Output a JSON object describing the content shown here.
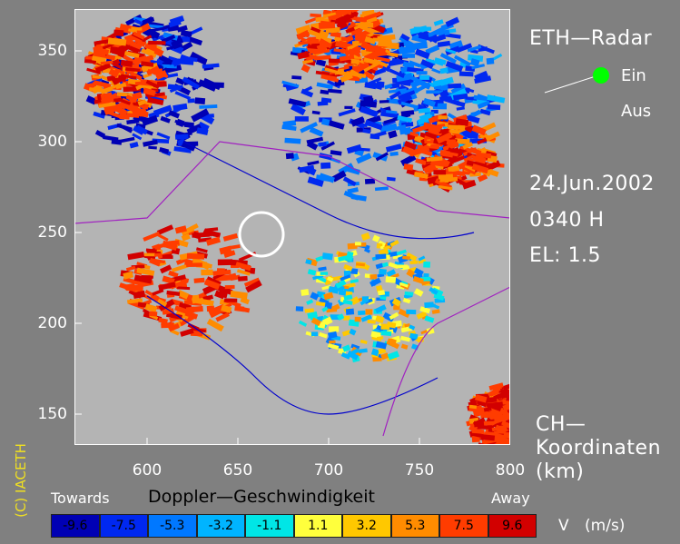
{
  "header": {
    "title": "ETH—Radar",
    "status_on": "Ein",
    "status_off": "Aus",
    "date": "24.Jun.2002",
    "time": "0340 H",
    "elevation": "EL: 1.5",
    "coords_line1": "CH—",
    "coords_line2": "Koordinaten",
    "coords_line3": "(km)"
  },
  "colors": {
    "background": "#808080",
    "plot_background": "#b4b4b4",
    "status_dot": "#00ff00",
    "copyright": "#f0e020",
    "river": "#0000cc",
    "border": "#a020c0",
    "marker_circle": "#ffffff"
  },
  "copyright": "(C) IACETH",
  "legend": {
    "towards": "Towards",
    "away": "Away",
    "title": "Doppler—Geschwindigkeit",
    "unit_label": "V (m/s)",
    "bins": [
      {
        "label": "-9.6",
        "color": "#0000b4"
      },
      {
        "label": "-7.5",
        "color": "#0028f0"
      },
      {
        "label": "-5.3",
        "color": "#0078ff"
      },
      {
        "label": "-3.2",
        "color": "#00b4ff"
      },
      {
        "label": "-1.1",
        "color": "#00e6e6"
      },
      {
        "label": "1.1",
        "color": "#ffff3c"
      },
      {
        "label": "3.2",
        "color": "#ffc800"
      },
      {
        "label": "5.3",
        "color": "#ff8c00"
      },
      {
        "label": "7.5",
        "color": "#ff3c00"
      },
      {
        "label": "9.6",
        "color": "#d20000"
      }
    ]
  },
  "chart_data": {
    "type": "heatmap",
    "title": "Doppler—Geschwindigkeit",
    "xlabel": "CH—Koordinaten (km)",
    "ylabel": "",
    "xlim": [
      560,
      800
    ],
    "ylim": [
      133,
      373
    ],
    "x_ticks": [
      600,
      650,
      700,
      750,
      800
    ],
    "y_ticks": [
      150,
      200,
      250,
      300,
      350
    ],
    "color_scale": "Doppler velocity V (m/s)",
    "marker": {
      "shape": "circle",
      "x": 663,
      "y": 249,
      "radius_km": 12
    },
    "echo_regions": [
      {
        "desc": "towards",
        "x": 710,
        "y": 320,
        "rx": 40,
        "ry": 50,
        "value": -7.5
      },
      {
        "desc": "towards",
        "x": 600,
        "y": 330,
        "rx": 35,
        "ry": 40,
        "value": -8.8
      },
      {
        "desc": "towards",
        "x": 760,
        "y": 330,
        "rx": 30,
        "ry": 40,
        "value": -6.0
      },
      {
        "desc": "away",
        "x": 585,
        "y": 340,
        "rx": 20,
        "ry": 25,
        "value": 7.5
      },
      {
        "desc": "away",
        "x": 620,
        "y": 225,
        "rx": 35,
        "ry": 30,
        "value": 7.5
      },
      {
        "desc": "away",
        "x": 765,
        "y": 295,
        "rx": 25,
        "ry": 20,
        "value": 8.0
      },
      {
        "desc": "away",
        "x": 705,
        "y": 355,
        "rx": 25,
        "ry": 20,
        "value": 7.0
      },
      {
        "desc": "away",
        "x": 790,
        "y": 148,
        "rx": 15,
        "ry": 18,
        "value": 8.5
      },
      {
        "desc": "mixed",
        "x": 720,
        "y": 215,
        "rx": 40,
        "ry": 35,
        "value": 1.1
      }
    ]
  }
}
